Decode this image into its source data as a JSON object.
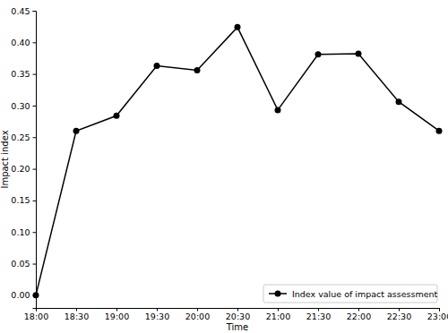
{
  "chart_data": {
    "type": "line",
    "x_label": "Time",
    "y_label": "Impact index",
    "categories": [
      "18:00",
      "18:30",
      "19:00",
      "19:30",
      "20:00",
      "20:30",
      "21:00",
      "21:30",
      "22:00",
      "22:30",
      "23:00"
    ],
    "series": [
      {
        "name": "Index value of impact assessment",
        "color": "#000000",
        "marker": "circle",
        "line_style": "solid",
        "values": [
          0.0,
          0.26,
          0.284,
          0.363,
          0.356,
          0.424,
          0.293,
          0.381,
          0.382,
          0.306,
          0.26
        ]
      }
    ],
    "ylim": [
      -0.02,
      0.45
    ],
    "yticks": [
      {
        "value": 0,
        "label": "0.00"
      },
      {
        "value": 0.05,
        "label": "0.05"
      },
      {
        "value": 0.1,
        "label": "0.10"
      },
      {
        "value": 0.15,
        "label": "0.15"
      },
      {
        "value": 0.2,
        "label": "0.20"
      },
      {
        "value": 0.25,
        "label": "0.25"
      },
      {
        "value": 0.3,
        "label": "0.30"
      },
      {
        "value": 0.35,
        "label": "0.35"
      },
      {
        "value": 0.4,
        "label": "0.40"
      },
      {
        "value": 0.45,
        "label": "0.45"
      }
    ],
    "legend": "lower right",
    "grid": false
  }
}
